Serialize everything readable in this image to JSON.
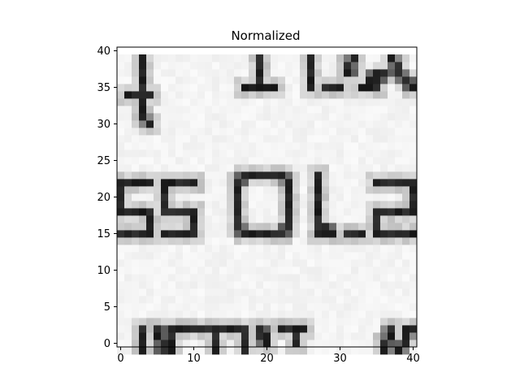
{
  "chart_data": {
    "type": "heatmap",
    "title": "Normalized",
    "xlabel": "",
    "ylabel": "",
    "xlim": [
      -0.5,
      40.5
    ],
    "ylim": [
      40.5,
      -0.5
    ],
    "xticks": [
      0,
      10,
      20,
      30,
      40
    ],
    "yticks": [
      0,
      5,
      10,
      15,
      20,
      25,
      30,
      35,
      40
    ],
    "colormap": "gray",
    "grid": false,
    "highlight_box": {
      "x_range": [
        15,
        24
      ],
      "y_range": [
        15,
        24
      ],
      "color": "#ff0000"
    }
  }
}
